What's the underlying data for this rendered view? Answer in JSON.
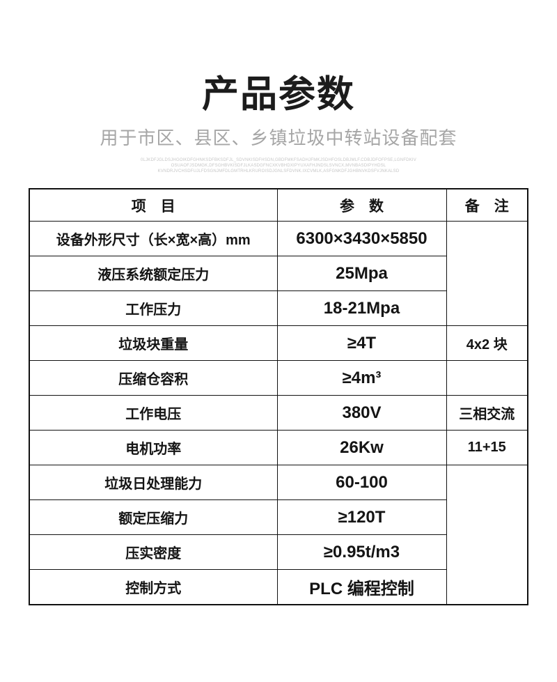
{
  "page": {
    "title": "产品参数",
    "subtitle": "用于市区、县区、乡镇垃圾中转站设备配套",
    "fine_print": [
      "0LJKDFJGLDSJHGOIKDFGHNKSDFBKSDFJL_SDVNKISDFHSDN,GBDFMKFSADHJFMKJSDHFOSLDBJMLF.CDBJDFOFPSE,LGNFDKIV",
      "OSUAOFJSDMGK,DFSGHBVKISDFJLKASDGFNCXKVBHDXIPYUXAFHJNDSLSVNCX,MVNBASDIPYHDSL",
      "KVNDRJVCHSDFUJLFDSGNJMFDLGMTRHLKRUROISDJGNLSFDVNK.IXCVMLK,ASFGNKDFJGHBNVKDSFVJNKALSD"
    ]
  },
  "table": {
    "headers": {
      "item": "项　目",
      "param": "参　数",
      "remark": "备　注"
    },
    "rows": [
      {
        "item": "设备外形尺寸（长×宽×高）mm",
        "param": "6300×3430×5850",
        "remark": ""
      },
      {
        "item": "液压系统额定压力",
        "param": "25Mpa"
      },
      {
        "item": "工作压力",
        "param": "18-21Mpa"
      },
      {
        "item": "垃圾块重量",
        "param": "≥4T",
        "remark": "4x2 块"
      },
      {
        "item": "压缩仓容积",
        "param": "≥4m³",
        "remark": ""
      },
      {
        "item": "工作电压",
        "param": "380V",
        "remark": "三相交流"
      },
      {
        "item": "电机功率",
        "param": "26Kw",
        "remark": "11+15"
      },
      {
        "item": "垃圾日处理能力",
        "param": "60-100",
        "remark": ""
      },
      {
        "item": "额定压缩力",
        "param": "≥120T"
      },
      {
        "item": "压实密度",
        "param": "≥0.95t/m3"
      },
      {
        "item": "控制方式",
        "param": "PLC 编程控制"
      }
    ]
  },
  "colors": {
    "background": "#ffffff",
    "title_text": "#1c1c1c",
    "subtitle_text": "#a6a6a6",
    "fine_print_text": "#c6c6c6",
    "table_border": "#111111",
    "table_text": "#141414"
  }
}
